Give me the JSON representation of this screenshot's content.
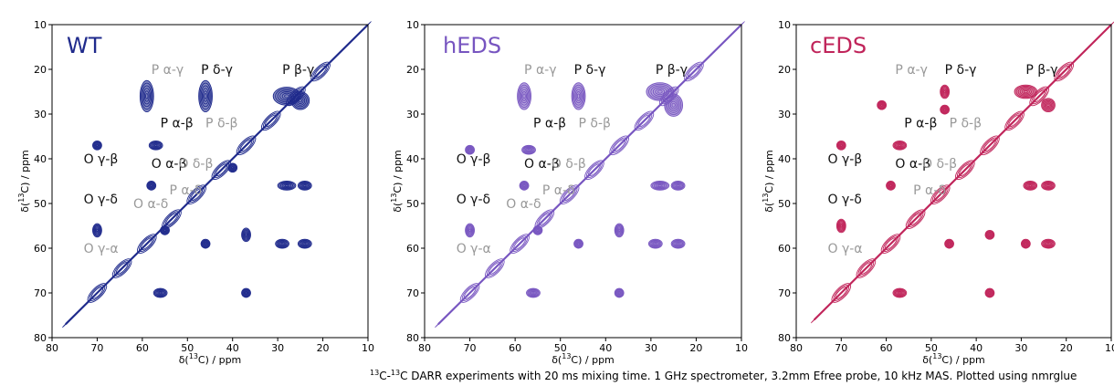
{
  "chart_data": [
    {
      "type": "contour",
      "title": "WT",
      "color": "#1f2a8c",
      "xlabel": "δ(13C) / ppm",
      "ylabel": "δ(13C) / ppm",
      "xlim": [
        80,
        10
      ],
      "ylim": [
        80,
        10
      ],
      "xticks": [
        "80",
        "70",
        "60",
        "50",
        "40",
        "30",
        "20",
        "10"
      ],
      "yticks": [
        "10",
        "20",
        "30",
        "40",
        "50",
        "60",
        "70",
        "80"
      ],
      "diagonal": [
        [
          77,
          77
        ],
        [
          10,
          10
        ]
      ],
      "peaks": [
        {
          "x": 59,
          "y": 26,
          "w": 3,
          "h": 7
        },
        {
          "x": 46,
          "y": 26,
          "w": 3,
          "h": 7
        },
        {
          "x": 28,
          "y": 26,
          "w": 6,
          "h": 4
        },
        {
          "x": 25,
          "y": 27,
          "w": 4,
          "h": 4
        },
        {
          "x": 70,
          "y": 37,
          "w": 2,
          "h": 2
        },
        {
          "x": 57,
          "y": 37,
          "w": 3,
          "h": 2
        },
        {
          "x": 40,
          "y": 42,
          "w": 2,
          "h": 2
        },
        {
          "x": 58,
          "y": 46,
          "w": 2,
          "h": 2
        },
        {
          "x": 28,
          "y": 46,
          "w": 4,
          "h": 2
        },
        {
          "x": 24,
          "y": 46,
          "w": 3,
          "h": 2
        },
        {
          "x": 70,
          "y": 56,
          "w": 2,
          "h": 3
        },
        {
          "x": 55,
          "y": 56,
          "w": 2,
          "h": 2
        },
        {
          "x": 46,
          "y": 59,
          "w": 2,
          "h": 2
        },
        {
          "x": 37,
          "y": 57,
          "w": 2,
          "h": 3
        },
        {
          "x": 29,
          "y": 59,
          "w": 3,
          "h": 2
        },
        {
          "x": 24,
          "y": 59,
          "w": 3,
          "h": 2
        },
        {
          "x": 56,
          "y": 70,
          "w": 3,
          "h": 2
        },
        {
          "x": 37,
          "y": 70,
          "w": 2,
          "h": 2
        }
      ],
      "annotations": [
        {
          "text": "P α-γ",
          "style": "gray",
          "x": 58,
          "y": 21
        },
        {
          "text": "P δ-γ",
          "style": "black",
          "x": 47,
          "y": 21
        },
        {
          "text": "P β-γ",
          "style": "black",
          "x": 29,
          "y": 21
        },
        {
          "text": "P α-β",
          "style": "black",
          "x": 56,
          "y": 33
        },
        {
          "text": "P δ-β",
          "style": "gray",
          "x": 46,
          "y": 33
        },
        {
          "text": "O γ-β",
          "style": "black",
          "x": 73,
          "y": 41
        },
        {
          "text": "O α-β",
          "style": "black",
          "x": 58,
          "y": 42
        },
        {
          "text": "O δ-β",
          "style": "gray",
          "x": 52,
          "y": 42
        },
        {
          "text": "O γ-δ",
          "style": "black",
          "x": 73,
          "y": 50
        },
        {
          "text": "O α-δ",
          "style": "gray",
          "x": 62,
          "y": 51
        },
        {
          "text": "P α-δ",
          "style": "gray",
          "x": 54,
          "y": 48
        },
        {
          "text": "O γ-α",
          "style": "gray",
          "x": 73,
          "y": 61
        }
      ]
    },
    {
      "type": "contour",
      "title": "hEDS",
      "color": "#7755c0",
      "xlabel": "δ(13C) / ppm",
      "ylabel": "δ(13C) / ppm",
      "xlim": [
        80,
        10
      ],
      "ylim": [
        80,
        10
      ],
      "xticks": [
        "80",
        "70",
        "60",
        "50",
        "40",
        "30",
        "20",
        "10"
      ],
      "yticks": [
        "10",
        "20",
        "30",
        "40",
        "50",
        "60",
        "70",
        "80"
      ],
      "diagonal": [
        [
          77,
          77
        ],
        [
          10,
          10
        ]
      ],
      "peaks": [
        {
          "x": 58,
          "y": 26,
          "w": 3,
          "h": 6
        },
        {
          "x": 46,
          "y": 26,
          "w": 3,
          "h": 6
        },
        {
          "x": 28,
          "y": 25,
          "w": 6,
          "h": 4
        },
        {
          "x": 25,
          "y": 28,
          "w": 4,
          "h": 5
        },
        {
          "x": 70,
          "y": 38,
          "w": 2,
          "h": 2
        },
        {
          "x": 57,
          "y": 38,
          "w": 3,
          "h": 2
        },
        {
          "x": 58,
          "y": 46,
          "w": 2,
          "h": 2
        },
        {
          "x": 28,
          "y": 46,
          "w": 4,
          "h": 2
        },
        {
          "x": 24,
          "y": 46,
          "w": 3,
          "h": 2
        },
        {
          "x": 70,
          "y": 56,
          "w": 2,
          "h": 3
        },
        {
          "x": 55,
          "y": 56,
          "w": 2,
          "h": 2
        },
        {
          "x": 46,
          "y": 59,
          "w": 2,
          "h": 2
        },
        {
          "x": 37,
          "y": 56,
          "w": 2,
          "h": 3
        },
        {
          "x": 29,
          "y": 59,
          "w": 3,
          "h": 2
        },
        {
          "x": 24,
          "y": 59,
          "w": 3,
          "h": 2
        },
        {
          "x": 56,
          "y": 70,
          "w": 3,
          "h": 2
        },
        {
          "x": 37,
          "y": 70,
          "w": 2,
          "h": 2
        }
      ],
      "annotations": [
        {
          "text": "P α-γ",
          "style": "gray",
          "x": 58,
          "y": 21
        },
        {
          "text": "P δ-γ",
          "style": "black",
          "x": 47,
          "y": 21
        },
        {
          "text": "P β-γ",
          "style": "black",
          "x": 29,
          "y": 21
        },
        {
          "text": "P α-β",
          "style": "black",
          "x": 56,
          "y": 33
        },
        {
          "text": "P δ-β",
          "style": "gray",
          "x": 46,
          "y": 33
        },
        {
          "text": "O γ-β",
          "style": "black",
          "x": 73,
          "y": 41
        },
        {
          "text": "O α-β",
          "style": "black",
          "x": 58,
          "y": 42
        },
        {
          "text": "O δ-β",
          "style": "gray",
          "x": 52,
          "y": 42
        },
        {
          "text": "O γ-δ",
          "style": "black",
          "x": 73,
          "y": 50
        },
        {
          "text": "O α-δ",
          "style": "gray",
          "x": 62,
          "y": 51
        },
        {
          "text": "P α-δ",
          "style": "gray",
          "x": 54,
          "y": 48
        },
        {
          "text": "O γ-α",
          "style": "gray",
          "x": 73,
          "y": 61
        }
      ]
    },
    {
      "type": "contour",
      "title": "cEDS",
      "color": "#c0245a",
      "xlabel": "δ(13C) / ppm",
      "ylabel": "δ(13C) / ppm",
      "xlim": [
        80,
        10
      ],
      "ylim": [
        80,
        10
      ],
      "xticks": [
        "80",
        "70",
        "60",
        "50",
        "40",
        "30",
        "20",
        "10"
      ],
      "yticks": [
        "10",
        "20",
        "30",
        "40",
        "50",
        "60",
        "70",
        "80"
      ],
      "diagonal": [
        [
          76,
          76
        ],
        [
          10,
          10
        ]
      ],
      "peaks": [
        {
          "x": 61,
          "y": 28,
          "w": 2,
          "h": 2
        },
        {
          "x": 47,
          "y": 25,
          "w": 2,
          "h": 3
        },
        {
          "x": 47,
          "y": 29,
          "w": 2,
          "h": 2
        },
        {
          "x": 29,
          "y": 25,
          "w": 5,
          "h": 3
        },
        {
          "x": 24,
          "y": 28,
          "w": 3,
          "h": 3
        },
        {
          "x": 70,
          "y": 37,
          "w": 2,
          "h": 2
        },
        {
          "x": 57,
          "y": 37,
          "w": 3,
          "h": 2
        },
        {
          "x": 59,
          "y": 46,
          "w": 2,
          "h": 2
        },
        {
          "x": 28,
          "y": 46,
          "w": 3,
          "h": 2
        },
        {
          "x": 24,
          "y": 46,
          "w": 3,
          "h": 2
        },
        {
          "x": 70,
          "y": 55,
          "w": 2,
          "h": 3
        },
        {
          "x": 46,
          "y": 59,
          "w": 2,
          "h": 2
        },
        {
          "x": 37,
          "y": 57,
          "w": 2,
          "h": 2
        },
        {
          "x": 29,
          "y": 59,
          "w": 2,
          "h": 2
        },
        {
          "x": 24,
          "y": 59,
          "w": 3,
          "h": 2
        },
        {
          "x": 57,
          "y": 70,
          "w": 3,
          "h": 2
        },
        {
          "x": 37,
          "y": 70,
          "w": 2,
          "h": 2
        }
      ],
      "annotations": [
        {
          "text": "P α-γ",
          "style": "gray",
          "x": 58,
          "y": 21
        },
        {
          "text": "P δ-γ",
          "style": "black",
          "x": 47,
          "y": 21
        },
        {
          "text": "P β-γ",
          "style": "black",
          "x": 29,
          "y": 21
        },
        {
          "text": "P α-β",
          "style": "black",
          "x": 56,
          "y": 33
        },
        {
          "text": "P δ-β",
          "style": "gray",
          "x": 46,
          "y": 33
        },
        {
          "text": "O γ-β",
          "style": "black",
          "x": 73,
          "y": 41
        },
        {
          "text": "O α-β",
          "style": "black",
          "x": 58,
          "y": 42
        },
        {
          "text": "O δ-β",
          "style": "gray",
          "x": 52,
          "y": 42
        },
        {
          "text": "O γ-δ",
          "style": "black",
          "x": 73,
          "y": 50
        },
        {
          "text": "P α-δ",
          "style": "gray",
          "x": 54,
          "y": 48
        },
        {
          "text": "O γ-α",
          "style": "gray",
          "x": 73,
          "y": 61
        }
      ]
    }
  ],
  "caption": {
    "iso_a": "13",
    "c_a": "C-",
    "iso_b": "13",
    "rest": "C DARR experiments with 20 ms mixing time. 1 GHz spectrometer, 3.2mm Efree probe, 10 kHz MAS. Plotted using nmrglue"
  }
}
